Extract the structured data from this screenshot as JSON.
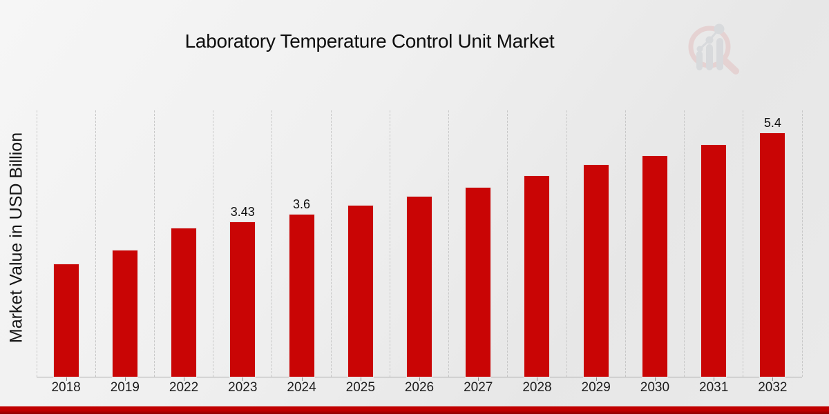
{
  "chart_data": {
    "type": "bar",
    "title": "Laboratory Temperature Control Unit Market",
    "xlabel": "",
    "ylabel": "Market Value in USD Billion",
    "categories": [
      "2018",
      "2019",
      "2022",
      "2023",
      "2024",
      "2025",
      "2026",
      "2027",
      "2028",
      "2029",
      "2030",
      "2031",
      "2032"
    ],
    "values": [
      2.5,
      2.8,
      3.3,
      3.43,
      3.6,
      3.8,
      4.0,
      4.2,
      4.45,
      4.7,
      4.9,
      5.15,
      5.4
    ],
    "bar_labels": [
      "",
      "",
      "",
      "3.43",
      "3.6",
      "",
      "",
      "",
      "",
      "",
      "",
      "",
      "5.4"
    ],
    "ylim": [
      0,
      5.9
    ],
    "grid": "vertical-dashed",
    "legend": "none",
    "bar_color": "#c90505",
    "grid_color": "#c7c7c7"
  },
  "branding": {
    "logo_icon": "magnifier-bar-chart-logo",
    "logo_ring_color": "#e3c1c1",
    "logo_chart_color": "#cbced4",
    "footer_accent_color": "#c00000"
  }
}
